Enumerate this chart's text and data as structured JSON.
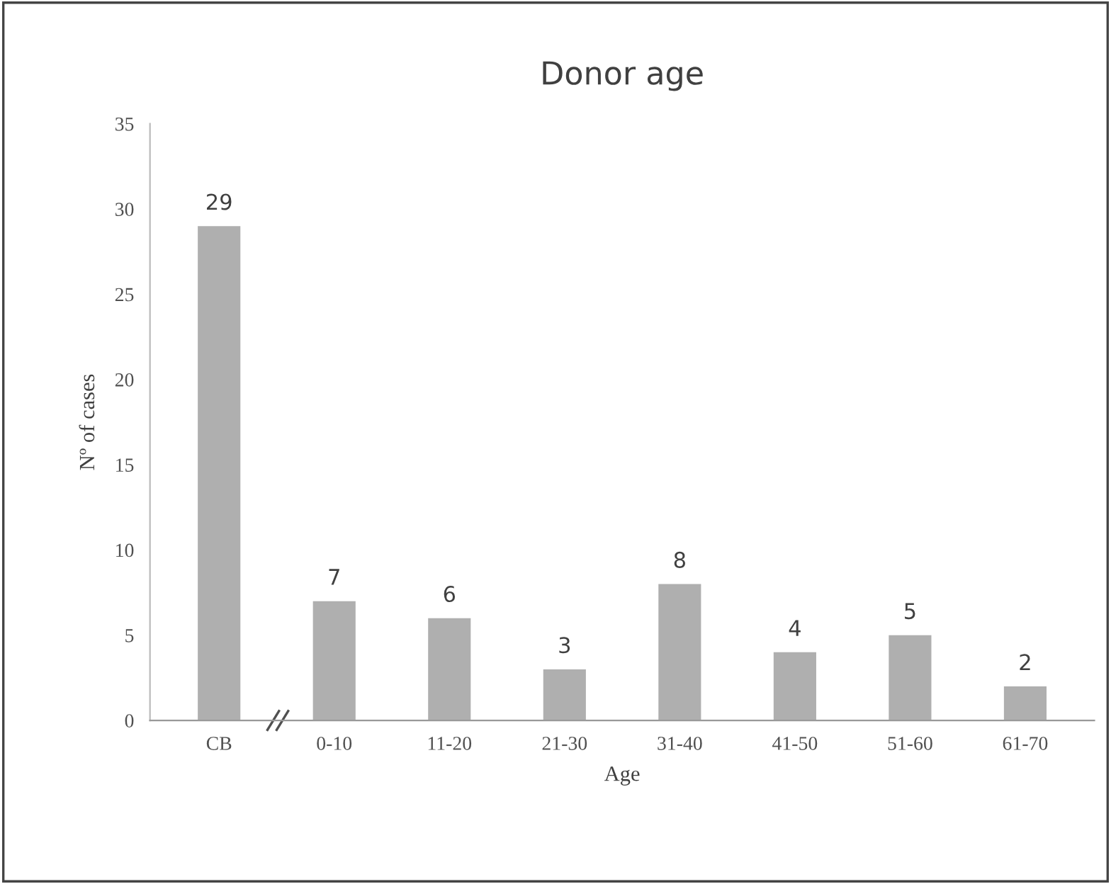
{
  "chart_data": {
    "type": "bar",
    "title": "Donor age",
    "xlabel": "Age",
    "ylabel": "Nº of cases",
    "categories": [
      "CB",
      "0-10",
      "11-20",
      "21-30",
      "31-40",
      "41-50",
      "51-60",
      "61-70"
    ],
    "values": [
      29,
      7,
      6,
      3,
      8,
      4,
      5,
      2
    ],
    "color": "#afafaf",
    "ylim": [
      0,
      35
    ],
    "yticks": [
      0,
      5,
      10,
      15,
      20,
      25,
      30,
      35
    ],
    "grid": false,
    "data_labels": true
  }
}
